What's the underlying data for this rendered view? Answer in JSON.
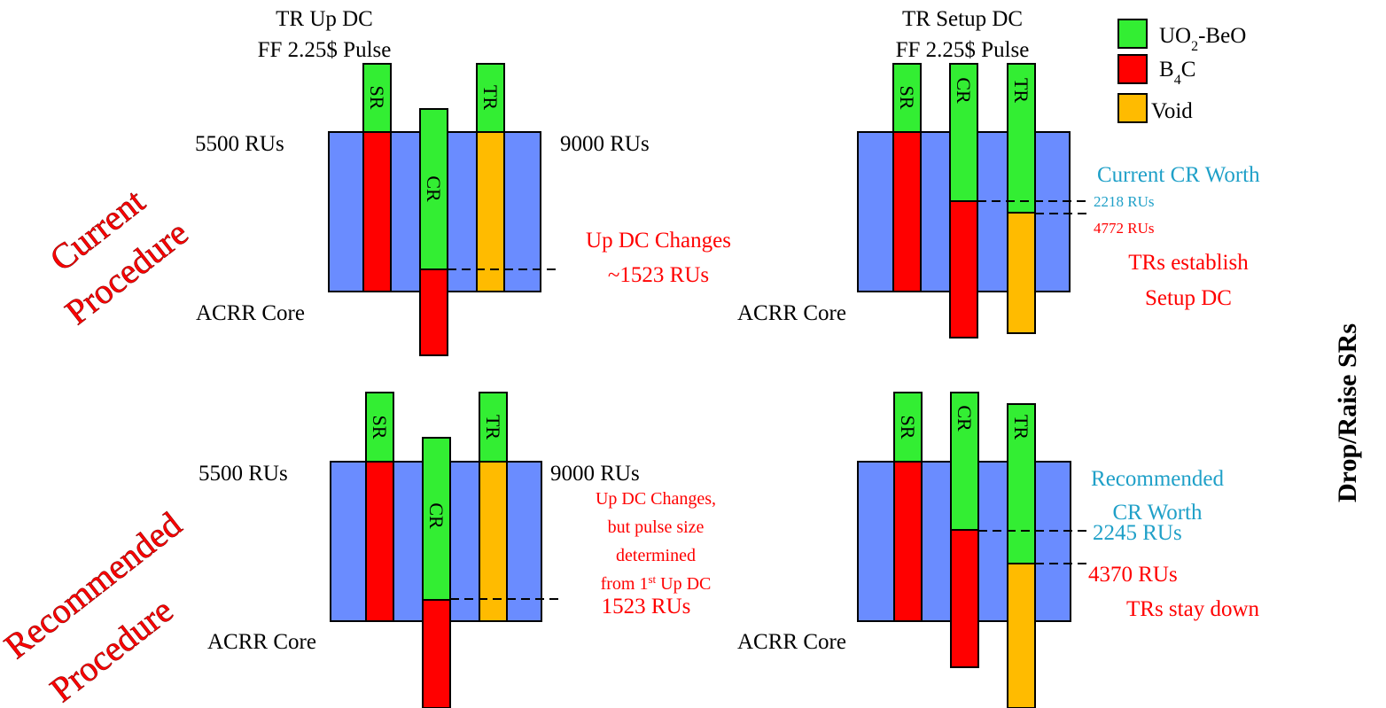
{
  "colors": {
    "core": "#6a8cff",
    "uo2_beo": "#33ee33",
    "b4c": "#ff0000",
    "void": "#ffbb00",
    "red_text": "#ff0000",
    "blue_text": "#1fa0c8"
  },
  "legend": {
    "uo2_beo": {
      "pre": "UO",
      "sub": "2",
      "post": "-BeO"
    },
    "b4c": {
      "pre": "B",
      "sub": "4",
      "post": "C"
    },
    "void": "Void"
  },
  "side_label": "Drop/Raise SRs",
  "procedures": {
    "current": {
      "line1": "Current",
      "line2": "Procedure"
    },
    "recommended": {
      "line1": "Recommended",
      "line2": "Procedure"
    }
  },
  "columns": {
    "up_dc": {
      "title1": "TR Up DC",
      "title2": "FF 2.25$ Pulse"
    },
    "setup_dc": {
      "title1": "TR Setup DC",
      "title2": "FF 2.25$ Pulse"
    }
  },
  "rods": {
    "sr": "SR",
    "cr": "CR",
    "tr": "TR"
  },
  "core_label": "ACRR Core",
  "panels": {
    "current_up": {
      "left_value": "5500 RUs",
      "right_value": "9000 RUs",
      "change_line1": "Up DC Changes",
      "change_line2": "~1523 RUs"
    },
    "current_setup": {
      "worth_title": "Current CR Worth",
      "cr_value": "2218 RUs",
      "tr_value": "4772 RUs",
      "note_line1": "TRs establish",
      "note_line2": "Setup DC"
    },
    "recommended_up": {
      "left_value": "5500 RUs",
      "right_value": "9000 RUs",
      "note_line1": "Up DC Changes,",
      "note_line2": "but pulse size",
      "note_line3": "determined",
      "note_line4_pre": "from 1",
      "note_line4_sup": "st",
      "note_line4_post": " Up DC",
      "value": "1523 RUs"
    },
    "recommended_setup": {
      "worth_line1": "Recommended",
      "worth_line2": "CR Worth",
      "cr_value": "2245 RUs",
      "tr_value": "4370 RUs",
      "note": "TRs stay down"
    }
  }
}
